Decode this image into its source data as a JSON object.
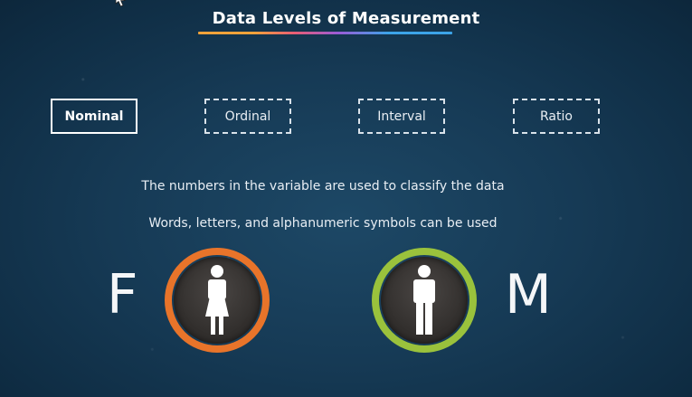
{
  "title": "Data Levels of Measurement",
  "levels": [
    {
      "label": "Nominal",
      "state": "selected"
    },
    {
      "label": "Ordinal",
      "state": "unselected"
    },
    {
      "label": "Interval",
      "state": "unselected"
    },
    {
      "label": "Ratio",
      "state": "unselected"
    }
  ],
  "descriptions": [
    "The numbers in the variable are used to classify the data",
    "Words, letters, and alphanumeric symbols can be used"
  ],
  "female": {
    "letter": "F",
    "icon": "female-icon",
    "ring_color": "#e8742a"
  },
  "male": {
    "letter": "M",
    "icon": "male-icon",
    "ring_color": "#9ac23c"
  },
  "colors": {
    "background": "#163a55",
    "title_underline": [
      "#f2a33a",
      "#e85d75",
      "#9b5bd6",
      "#3ca4e8"
    ]
  }
}
